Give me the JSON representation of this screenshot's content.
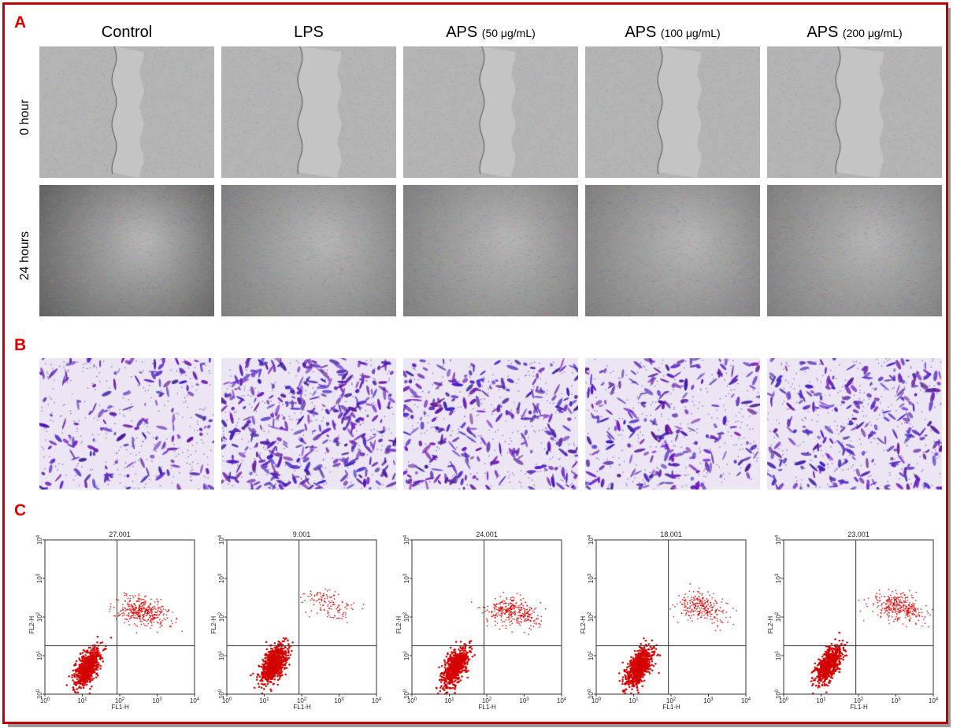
{
  "panel_labels": {
    "a": "A",
    "b": "B",
    "c": "C"
  },
  "columns": [
    {
      "main": "Control",
      "sub": ""
    },
    {
      "main": "LPS",
      "sub": ""
    },
    {
      "main": "APS",
      "sub": "(50 μg/mL)"
    },
    {
      "main": "APS",
      "sub": "(100 μg/mL)"
    },
    {
      "main": "APS",
      "sub": "(200 μg/mL)"
    }
  ],
  "rows": {
    "r0": "0 hour",
    "r1": "24 hours"
  },
  "colors": {
    "frame": "#c00000",
    "letters": "#e00000",
    "dots": "#d40000",
    "stain": "#5a2ca8"
  },
  "chart_data": [
    {
      "type": "scatter",
      "title": "27.001",
      "xlabel": "FL1-H",
      "ylabel": "FL2-H",
      "xscale": "log",
      "yscale": "log",
      "xlim": [
        1,
        10000
      ],
      "ylim": [
        1,
        10000
      ],
      "xticks": [
        "10^0",
        "10^1",
        "10^2",
        "10^3",
        "10^4"
      ],
      "yticks": [
        "10^0",
        "10^1",
        "10^2",
        "10^3",
        "10^4"
      ],
      "quadrant_gate": {
        "x": 85,
        "y": 18
      },
      "populations": [
        {
          "center": [
            14,
            5
          ],
          "share": 0.73
        },
        {
          "center": [
            400,
            150
          ],
          "share": 0.27
        }
      ]
    },
    {
      "type": "scatter",
      "title": "9.001",
      "xlabel": "FL1-H",
      "ylabel": "FL2-H",
      "xscale": "log",
      "yscale": "log",
      "xlim": [
        1,
        10000
      ],
      "ylim": [
        1,
        10000
      ],
      "xticks": [
        "10^0",
        "10^1",
        "10^2",
        "10^3",
        "10^4"
      ],
      "yticks": [
        "10^0",
        "10^1",
        "10^2",
        "10^3",
        "10^4"
      ],
      "quadrant_gate": {
        "x": 85,
        "y": 18
      },
      "populations": [
        {
          "center": [
            18,
            6
          ],
          "share": 0.91
        },
        {
          "center": [
            500,
            250
          ],
          "share": 0.09
        }
      ]
    },
    {
      "type": "scatter",
      "title": "24.001",
      "xlabel": "FL1-H",
      "ylabel": "FL2-H",
      "xscale": "log",
      "yscale": "log",
      "xlim": [
        1,
        10000
      ],
      "ylim": [
        1,
        10000
      ],
      "xticks": [
        "10^0",
        "10^1",
        "10^2",
        "10^3",
        "10^4"
      ],
      "yticks": [
        "10^0",
        "10^1",
        "10^2",
        "10^3",
        "10^4"
      ],
      "quadrant_gate": {
        "x": 85,
        "y": 18
      },
      "populations": [
        {
          "center": [
            14,
            5
          ],
          "share": 0.76
        },
        {
          "center": [
            500,
            150
          ],
          "share": 0.24
        }
      ]
    },
    {
      "type": "scatter",
      "title": "18.001",
      "xlabel": "FL1-H",
      "ylabel": "FL2-H",
      "xscale": "log",
      "yscale": "log",
      "xlim": [
        1,
        10000
      ],
      "ylim": [
        1,
        10000
      ],
      "xticks": [
        "10^0",
        "10^1",
        "10^2",
        "10^3",
        "10^4"
      ],
      "yticks": [
        "10^0",
        "10^1",
        "10^2",
        "10^3",
        "10^4"
      ],
      "quadrant_gate": {
        "x": 85,
        "y": 18
      },
      "populations": [
        {
          "center": [
            14,
            5
          ],
          "share": 0.82
        },
        {
          "center": [
            600,
            200
          ],
          "share": 0.18
        }
      ]
    },
    {
      "type": "scatter",
      "title": "23.001",
      "xlabel": "FL1-H",
      "ylabel": "FL2-H",
      "xscale": "log",
      "yscale": "log",
      "xlim": [
        1,
        10000
      ],
      "ylim": [
        1,
        10000
      ],
      "xticks": [
        "10^0",
        "10^1",
        "10^2",
        "10^3",
        "10^4"
      ],
      "yticks": [
        "10^0",
        "10^1",
        "10^2",
        "10^3",
        "10^4"
      ],
      "quadrant_gate": {
        "x": 85,
        "y": 18
      },
      "populations": [
        {
          "center": [
            16,
            6
          ],
          "share": 0.77
        },
        {
          "center": [
            1200,
            200
          ],
          "share": 0.23
        }
      ]
    }
  ]
}
